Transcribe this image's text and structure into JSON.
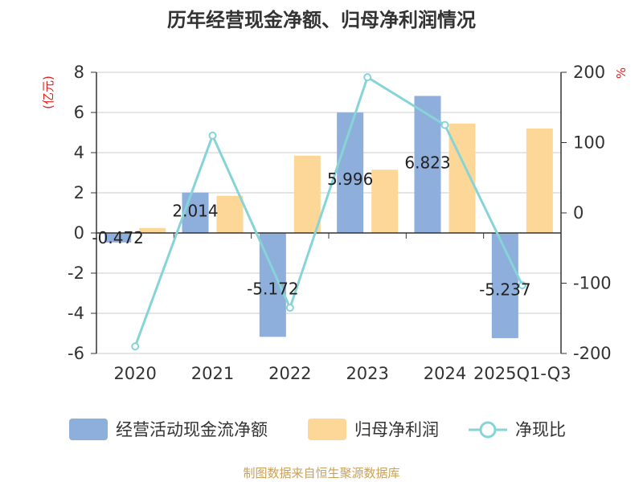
{
  "chart_data": {
    "type": "bar",
    "title": "历年经营现金净额、归母净利润情况",
    "left_unit": "(亿元)",
    "right_unit": "%",
    "categories": [
      "2020",
      "2021",
      "2022",
      "2023",
      "2024",
      "2025Q1-Q3"
    ],
    "ylim_left": [
      -6,
      8
    ],
    "yticks_left": [
      8,
      6,
      4,
      2,
      0,
      -2,
      -4,
      -6
    ],
    "ylim_right": [
      -200,
      200
    ],
    "yticks_right": [
      200,
      100,
      0,
      -100,
      -200
    ],
    "series": [
      {
        "name": "经营活动现金流净额",
        "type": "bar",
        "axis": "left",
        "color": "#8eaedb",
        "values": [
          -0.472,
          2.014,
          -5.172,
          5.996,
          6.823,
          -5.237
        ],
        "labels": [
          "-0.472",
          "2.014",
          "-5.172",
          "5.996",
          "6.823",
          "-5.237"
        ]
      },
      {
        "name": "归母净利润",
        "type": "bar",
        "axis": "left",
        "color": "#fdd797",
        "values": [
          0.25,
          1.85,
          3.85,
          3.15,
          5.45,
          5.2
        ]
      },
      {
        "name": "净现比",
        "type": "line",
        "axis": "right",
        "color": "#86d4d8",
        "values": [
          -190,
          110,
          -135,
          193,
          125,
          -103
        ]
      }
    ],
    "grid": true,
    "legend": "bottom"
  },
  "footer": {
    "source": "制图数据来自恒生聚源数据库"
  }
}
